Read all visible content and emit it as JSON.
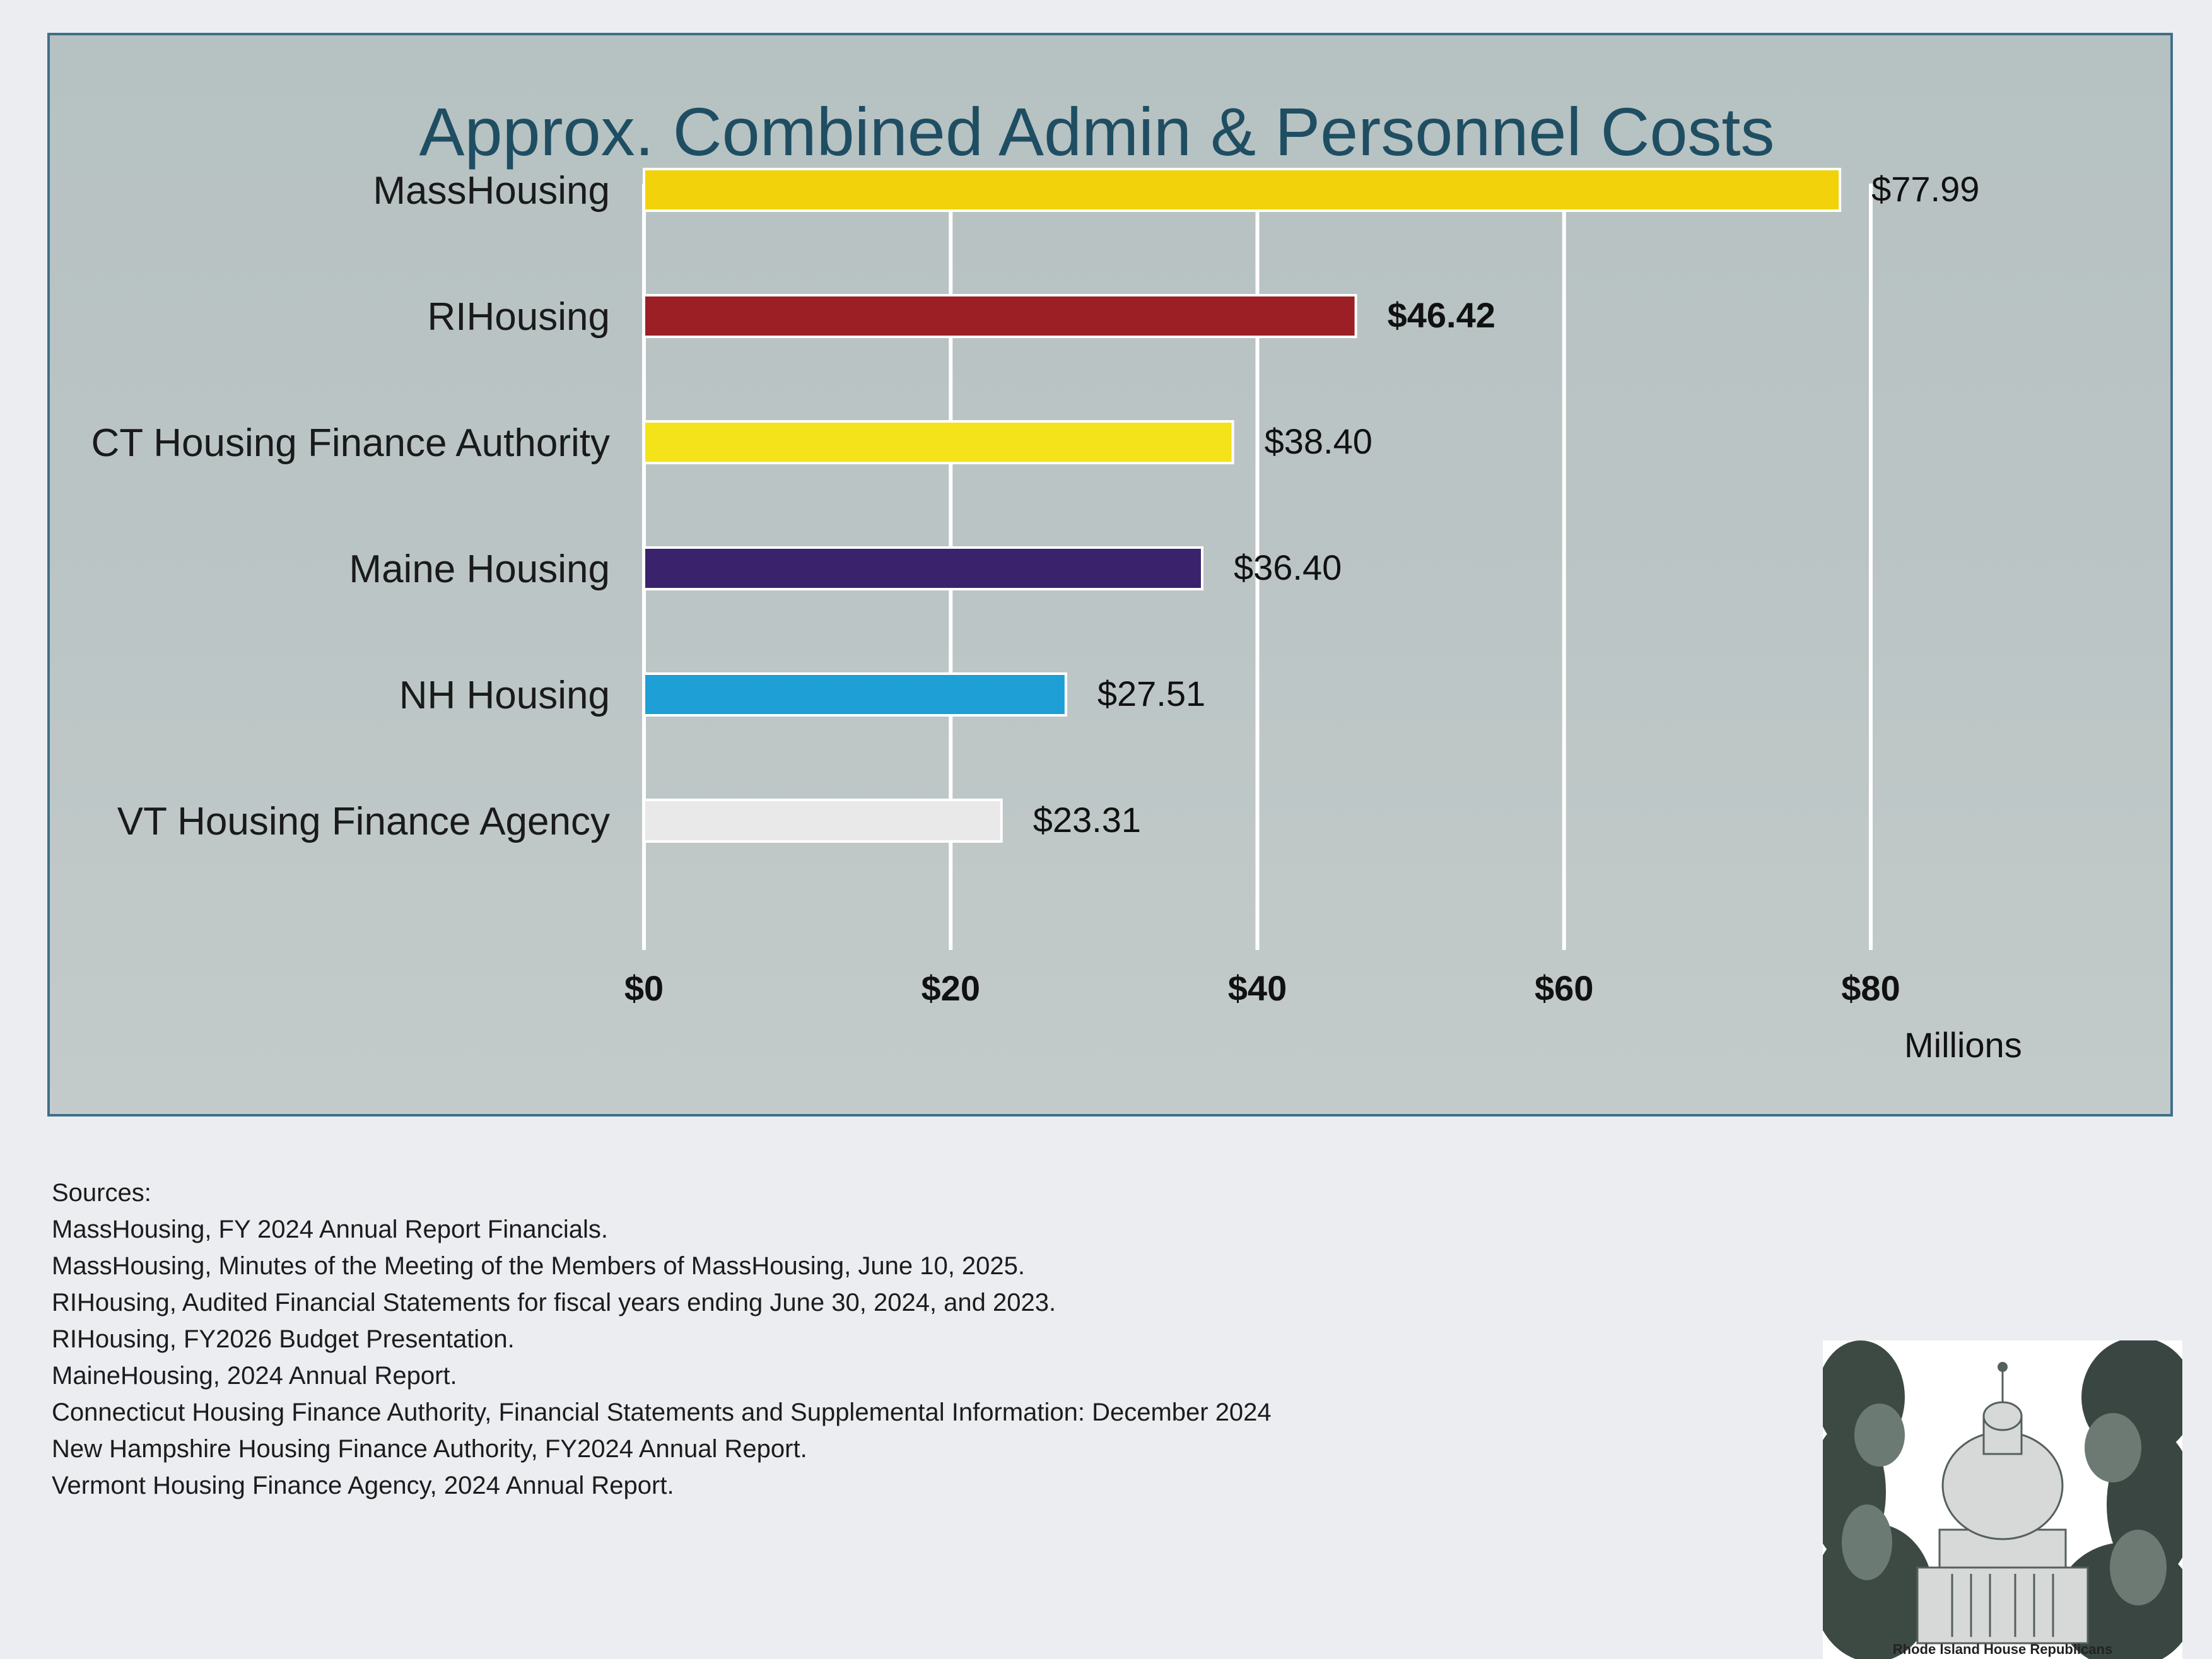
{
  "chart_data": {
    "type": "bar",
    "orientation": "horizontal",
    "title": "Approx. Combined Admin & Personnel Costs",
    "categories": [
      "MassHousing",
      "RIHousing",
      "CT Housing Finance Authority",
      "Maine Housing",
      "NH Housing",
      "VT Housing Finance Agency"
    ],
    "values": [
      77.99,
      46.42,
      38.4,
      36.4,
      27.51,
      23.31
    ],
    "data_labels": [
      "$77.99",
      "$46.42",
      "$38.40",
      "$36.40",
      "$27.51",
      "$23.31"
    ],
    "bar_colors": [
      "#f2d20a",
      "#9b1f25",
      "#f4e21a",
      "#3a236c",
      "#1e9fd6",
      "#e9e9e9"
    ],
    "bold_label_index": 1,
    "xlim": [
      0,
      80
    ],
    "xticks": [
      0,
      20,
      40,
      60,
      80
    ],
    "xtick_labels": [
      "$0",
      "$20",
      "$40",
      "$60",
      "$80"
    ],
    "xlabel": "Millions",
    "grid": true,
    "legend": "none"
  },
  "sources": {
    "heading": "Sources:",
    "items": [
      "MassHousing, FY 2024 Annual Report Financials.",
      "MassHousing, Minutes of the Meeting of the Members of MassHousing, June 10, 2025.",
      "RIHousing, Audited Financial Statements for fiscal years ending June 30, 2024, and 2023.",
      "RIHousing, FY2026 Budget Presentation.",
      "MaineHousing, 2024 Annual Report.",
      "Connecticut Housing Finance Authority, Financial Statements and Supplemental Information: December 2024",
      "New Hampshire Housing Finance Authority, FY2024 Annual Report.",
      "Vermont Housing Finance Agency, 2024 Annual Report."
    ]
  },
  "logo": {
    "caption": "Rhode Island House Republicans"
  },
  "colors": {
    "title": "#1f4e63",
    "panel_border": "#3f6f88",
    "grid": "#ffffff"
  }
}
